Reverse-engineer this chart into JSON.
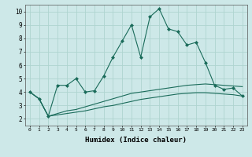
{
  "x": [
    0,
    1,
    2,
    3,
    4,
    5,
    6,
    7,
    8,
    9,
    10,
    11,
    12,
    13,
    14,
    15,
    16,
    17,
    18,
    19,
    20,
    21,
    22,
    23
  ],
  "line1": [
    4.0,
    3.5,
    2.2,
    4.5,
    4.5,
    5.0,
    4.0,
    4.1,
    5.2,
    6.6,
    7.8,
    9.0,
    6.6,
    9.6,
    10.2,
    8.7,
    8.5,
    7.5,
    7.7,
    6.2,
    4.5,
    4.2,
    4.3,
    3.7
  ],
  "line2": [
    4.0,
    3.5,
    2.2,
    2.4,
    2.6,
    2.7,
    2.9,
    3.1,
    3.3,
    3.5,
    3.7,
    3.9,
    4.0,
    4.1,
    4.2,
    4.3,
    4.4,
    4.5,
    4.55,
    4.6,
    4.55,
    4.5,
    4.45,
    4.4
  ],
  "line3": [
    4.0,
    3.5,
    2.2,
    2.3,
    2.4,
    2.5,
    2.6,
    2.75,
    2.9,
    3.0,
    3.15,
    3.3,
    3.45,
    3.55,
    3.65,
    3.75,
    3.85,
    3.9,
    3.95,
    3.95,
    3.9,
    3.85,
    3.8,
    3.7
  ],
  "line_color": "#1a6b5a",
  "bg_color": "#cde8e8",
  "grid_color": "#afd4d0",
  "xlabel": "Humidex (Indice chaleur)",
  "ylim": [
    1.5,
    10.5
  ],
  "xlim": [
    -0.5,
    23.5
  ],
  "yticks": [
    2,
    3,
    4,
    5,
    6,
    7,
    8,
    9,
    10
  ],
  "xticks": [
    0,
    1,
    2,
    3,
    4,
    5,
    6,
    7,
    8,
    9,
    10,
    11,
    12,
    13,
    14,
    15,
    16,
    17,
    18,
    19,
    20,
    21,
    22,
    23
  ]
}
